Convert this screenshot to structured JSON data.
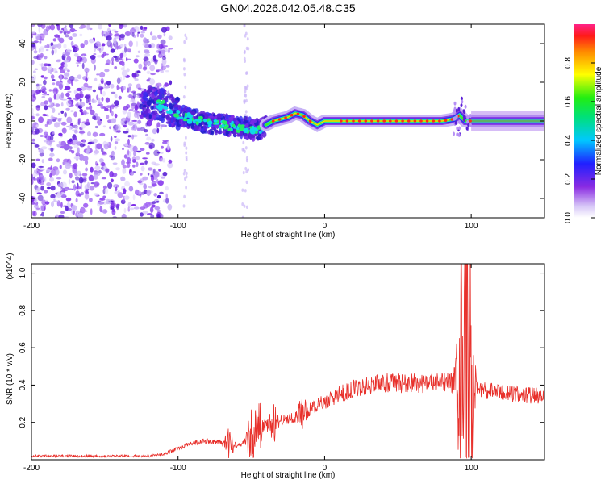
{
  "title": "GN04.2026.042.05.48.C35",
  "chart_data": [
    {
      "type": "heatmap",
      "title": "GN04.2026.042.05.48.C35",
      "xlabel": "Height of straight line (km)",
      "ylabel": "Frequency (Hz)",
      "xlim": [
        -200,
        150
      ],
      "ylim": [
        -50,
        50
      ],
      "x_ticks": [
        -200,
        -100,
        0,
        100
      ],
      "y_ticks": [
        -40,
        -20,
        0,
        20,
        40
      ],
      "colorbar": {
        "label": "Normalized spectral amplitude",
        "range": [
          0.0,
          1.0
        ],
        "ticks": [
          "0.0",
          "0.2",
          "0.4",
          "0.6",
          "0.8"
        ]
      },
      "ridge": {
        "x": [
          -125,
          -110,
          -100,
          -90,
          -80,
          -70,
          -60,
          -50,
          -45,
          -40,
          -35,
          -30,
          -25,
          -20,
          -15,
          -10,
          -5,
          0,
          20,
          50,
          80,
          88,
          92,
          96,
          100,
          150
        ],
        "y": [
          10,
          8,
          3,
          1,
          -1,
          -2,
          -3,
          -4,
          -5,
          -2,
          0,
          1,
          2,
          4,
          3,
          0,
          -2,
          0,
          0,
          0,
          0,
          1,
          3,
          0,
          0,
          0
        ]
      }
    },
    {
      "type": "line",
      "xlabel": "Height of straight line (km)",
      "ylabel": "SNR (10 * v/v)",
      "y_multiplier": "(x10^4)",
      "xlim": [
        -200,
        150
      ],
      "ylim": [
        0,
        1.05
      ],
      "x_ticks": [
        -200,
        -100,
        0,
        100
      ],
      "y_ticks": [
        "0.2",
        "0.4",
        "0.6",
        "0.8",
        "1.0"
      ],
      "color": "#e8312c",
      "envelope": {
        "x": [
          -200,
          -120,
          -110,
          -100,
          -90,
          -80,
          -70,
          -60,
          -55,
          -50,
          -45,
          -40,
          -35,
          -30,
          -20,
          -10,
          0,
          10,
          20,
          30,
          40,
          60,
          80,
          85,
          90,
          95,
          100,
          105,
          110,
          130,
          150
        ],
        "y": [
          0.02,
          0.02,
          0.03,
          0.06,
          0.09,
          0.1,
          0.09,
          0.08,
          0.09,
          0.12,
          0.18,
          0.18,
          0.2,
          0.21,
          0.23,
          0.27,
          0.31,
          0.35,
          0.38,
          0.4,
          0.41,
          0.41,
          0.41,
          0.42,
          0.4,
          0.4,
          0.4,
          0.39,
          0.37,
          0.35,
          0.34
        ]
      },
      "spikes": [
        {
          "x": -65,
          "amp": 0.09
        },
        {
          "x": -50,
          "amp": 0.2
        },
        {
          "x": -45,
          "amp": 0.12
        },
        {
          "x": -35,
          "amp": 0.1
        },
        {
          "x": -15,
          "amp": 0.08
        },
        {
          "x": 92,
          "amp": 0.3
        },
        {
          "x": 94,
          "amp": 0.55
        },
        {
          "x": 97,
          "amp": 0.45
        },
        {
          "x": 99,
          "amp": 0.7
        }
      ]
    }
  ]
}
